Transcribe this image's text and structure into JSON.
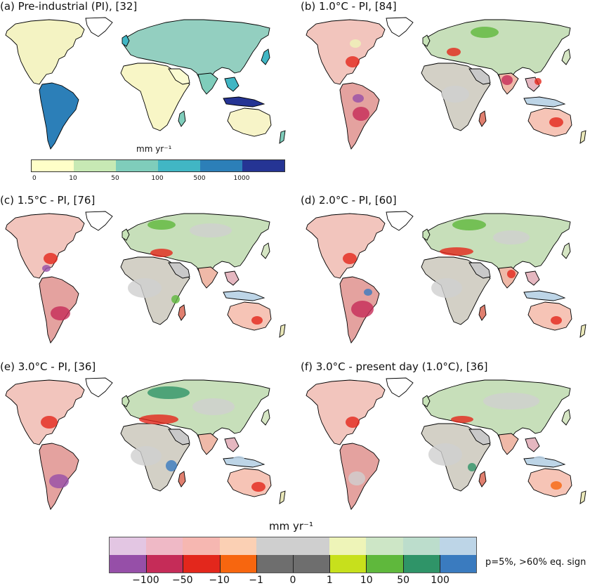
{
  "panels": [
    {
      "title": "(a) Pre-industrial (PI), [32]",
      "kind": "abs"
    },
    {
      "title": "(b) 1.0°C - PI, [84]",
      "kind": "diff"
    },
    {
      "title": "(c) 1.5°C - PI, [76]",
      "kind": "diff"
    },
    {
      "title": "(d) 2.0°C - PI, [60]",
      "kind": "diff"
    },
    {
      "title": "(e) 3.0°C - PI, [36]",
      "kind": "diff"
    },
    {
      "title": "(f) 3.0°C - present day (1.0°C), [36]",
      "kind": "diff"
    }
  ],
  "abs_colorbar": {
    "unit": "mm yr⁻¹",
    "ticks": [
      "0",
      "10",
      "50",
      "100",
      "500",
      "1000"
    ],
    "colors": [
      "#ffffc8",
      "#c7e9b4",
      "#7fcdbb",
      "#41b6c4",
      "#2c7fb8",
      "#253494"
    ]
  },
  "diff_colorbar": {
    "unit": "mm yr⁻¹",
    "ticks": [
      "−100",
      "−50",
      "−10",
      "−1",
      "0",
      "1",
      "10",
      "50",
      "100"
    ],
    "light_colors": [
      "#e3c6e3",
      "#efb9c6",
      "#f6b7b1",
      "#fbd0b4",
      "#cfcfcf",
      "#cfcfcf",
      "#eef4b8",
      "#cde6c6",
      "#bcddcc",
      "#bdd5e7"
    ],
    "dark_colors": [
      "#964fa8",
      "#c52c58",
      "#e3271c",
      "#f7660f",
      "#6e6e6e",
      "#6e6e6e",
      "#c7e01c",
      "#5fb83c",
      "#2f9468",
      "#3a7bbf"
    ],
    "note": "p=5%, >60% eq. sign"
  }
}
